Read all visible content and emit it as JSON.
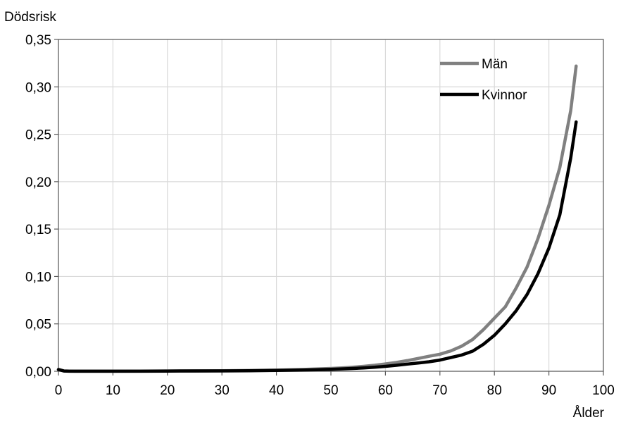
{
  "chart_data": {
    "type": "line",
    "title": "",
    "ylabel": "Dödsrisk",
    "xlabel": "Ålder",
    "xlim": [
      0,
      100
    ],
    "ylim": [
      0,
      0.35
    ],
    "x_ticks": [
      0,
      10,
      20,
      30,
      40,
      50,
      60,
      70,
      80,
      90,
      100
    ],
    "x_tick_labels": [
      "0",
      "10",
      "20",
      "30",
      "40",
      "50",
      "60",
      "70",
      "80",
      "90",
      "100"
    ],
    "y_ticks": [
      0,
      0.05,
      0.1,
      0.15,
      0.2,
      0.25,
      0.3,
      0.35
    ],
    "y_tick_labels": [
      "0,00",
      "0,05",
      "0,10",
      "0,15",
      "0,20",
      "0,25",
      "0,30",
      "0,35"
    ],
    "grid": true,
    "legend_position": "top-right",
    "series": [
      {
        "name": "Män",
        "color": "#808080",
        "x": [
          0,
          1,
          2,
          3,
          5,
          10,
          15,
          20,
          25,
          30,
          35,
          40,
          45,
          50,
          52,
          54,
          56,
          58,
          60,
          62,
          64,
          66,
          68,
          70,
          72,
          74,
          76,
          78,
          80,
          82,
          84,
          86,
          88,
          90,
          92,
          94,
          95
        ],
        "y": [
          0.002,
          0.0004,
          0.0002,
          0.0001,
          0.0001,
          0.0001,
          0.0002,
          0.0004,
          0.0005,
          0.0006,
          0.0008,
          0.0012,
          0.0019,
          0.003,
          0.0036,
          0.0043,
          0.0052,
          0.0063,
          0.0077,
          0.0093,
          0.0112,
          0.0135,
          0.0158,
          0.018,
          0.0215,
          0.0265,
          0.0335,
          0.044,
          0.056,
          0.068,
          0.088,
          0.11,
          0.14,
          0.175,
          0.215,
          0.275,
          0.322
        ]
      },
      {
        "name": "Kvinnor",
        "color": "#000000",
        "x": [
          0,
          1,
          2,
          3,
          5,
          10,
          15,
          20,
          25,
          30,
          35,
          40,
          45,
          50,
          52,
          54,
          56,
          58,
          60,
          62,
          64,
          66,
          68,
          70,
          72,
          74,
          76,
          78,
          80,
          82,
          84,
          86,
          88,
          90,
          92,
          94,
          95
        ],
        "y": [
          0.0018,
          0.0003,
          0.0001,
          0.0001,
          0.0001,
          0.0001,
          0.0001,
          0.0002,
          0.0003,
          0.0004,
          0.0006,
          0.0009,
          0.0013,
          0.002,
          0.0025,
          0.003,
          0.0036,
          0.0043,
          0.0052,
          0.0063,
          0.0076,
          0.0088,
          0.01,
          0.0118,
          0.0145,
          0.0172,
          0.0212,
          0.0285,
          0.038,
          0.05,
          0.064,
          0.081,
          0.103,
          0.13,
          0.165,
          0.225,
          0.263
        ]
      }
    ]
  }
}
